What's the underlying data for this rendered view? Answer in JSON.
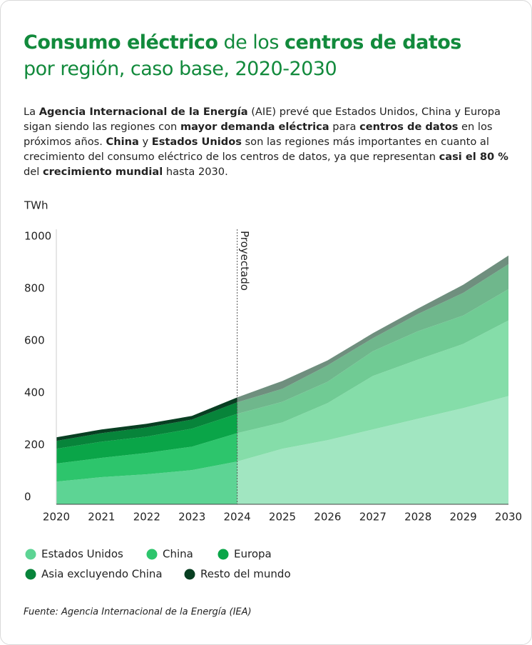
{
  "header": {
    "title_lines": [
      [
        {
          "text": "Consumo eléctrico",
          "bold": true
        },
        {
          "text": " de los ",
          "bold": false
        },
        {
          "text": "centros de datos",
          "bold": true
        }
      ],
      [
        {
          "text": "por región, caso base, 2020-2030",
          "bold": false
        }
      ]
    ],
    "body": [
      {
        "text": "La ",
        "bold": false
      },
      {
        "text": "Agencia Internacional de la Energía",
        "bold": true
      },
      {
        "text": " (AIE) prevé que Estados Unidos, China y Europa sigan siendo las regiones con ",
        "bold": false
      },
      {
        "text": "mayor demanda eléctrica",
        "bold": true
      },
      {
        "text": " para ",
        "bold": false
      },
      {
        "text": "centros de datos",
        "bold": true
      },
      {
        "text": " en los próximos años. ",
        "bold": false
      },
      {
        "text": "China",
        "bold": true
      },
      {
        "text": " y ",
        "bold": false
      },
      {
        "text": "Estados Unidos",
        "bold": true
      },
      {
        "text": " son las regiones más importantes en cuanto al crecimiento del consumo eléctrico de los centros de datos, ya que representan ",
        "bold": false
      },
      {
        "text": "casi el 80 %",
        "bold": true
      },
      {
        "text": " del ",
        "bold": false
      },
      {
        "text": "crecimiento mundial",
        "bold": true
      },
      {
        "text": " hasta 2030.",
        "bold": false
      }
    ]
  },
  "chart_data": {
    "type": "stacked_area",
    "y_label": "TWh",
    "categories": [
      "2020",
      "2021",
      "2022",
      "2023",
      "2024",
      "2025",
      "2026",
      "2027",
      "2028",
      "2029",
      "2030"
    ],
    "series": [
      {
        "name": "Estados Unidos",
        "color": "#5dd494",
        "values": [
          87,
          104,
          115,
          131,
          164,
          213,
          246,
          287,
          328,
          369,
          415
        ]
      },
      {
        "name": "China",
        "color": "#2dc56c",
        "values": [
          69,
          74,
          82,
          90,
          109,
          101,
          142,
          205,
          227,
          246,
          290
        ]
      },
      {
        "name": "Europa",
        "color": "#0aa548",
        "values": [
          57,
          62,
          63,
          69,
          74,
          79,
          82,
          95,
          109,
          109,
          120
        ]
      },
      {
        "name": "Asia excluyendo China",
        "color": "#07843a",
        "values": [
          30,
          33,
          35,
          35,
          44,
          50,
          63,
          50,
          66,
          87,
          96
        ]
      },
      {
        "name": "Resto del mundo",
        "color": "#083f22",
        "values": [
          14,
          14,
          14,
          14,
          19,
          30,
          19,
          19,
          21,
          31,
          33
        ]
      }
    ],
    "ylim": [
      0,
      1000
    ],
    "yticks": [
      0,
      200,
      400,
      600,
      800,
      1000
    ],
    "annotation": {
      "text": "Proyectado",
      "x": "2024"
    },
    "source": "Fuente: Agencia Internacional de la Energía (IEA)"
  }
}
